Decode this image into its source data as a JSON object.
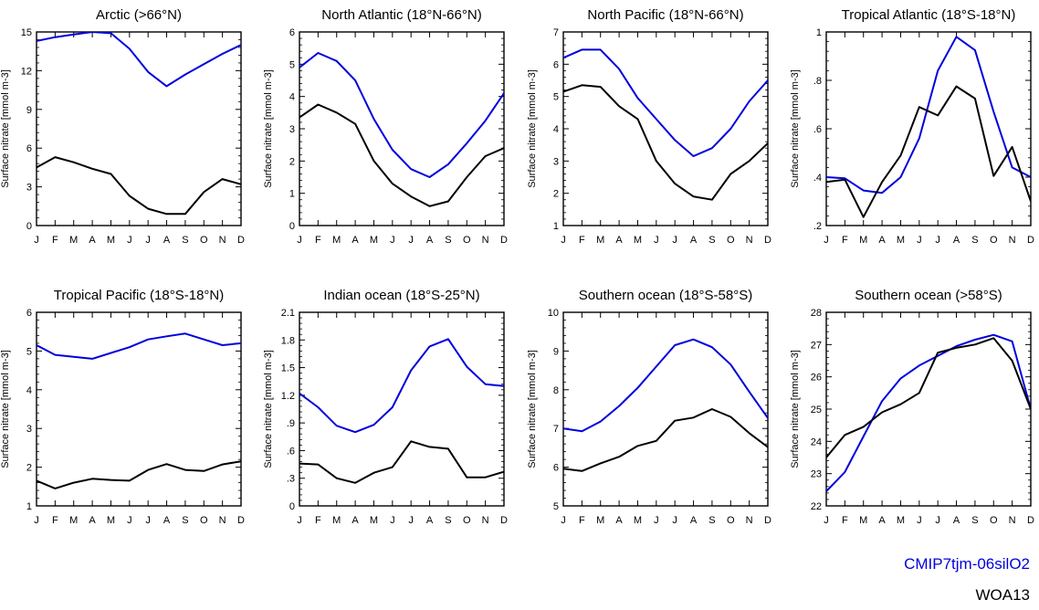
{
  "colors": {
    "model": "#0000dd",
    "obs": "#000000"
  },
  "legend": {
    "model": "CMIP7tjm-06silO2",
    "obs": "WOA13"
  },
  "chart_data": [
    {
      "type": "line",
      "title": "Arctic (>66°N)",
      "ylabel": "Surface nitrate [mmol m-3]",
      "categories": [
        "J",
        "F",
        "M",
        "A",
        "M",
        "J",
        "J",
        "A",
        "S",
        "O",
        "N",
        "D"
      ],
      "ylim": [
        0,
        15
      ],
      "yticks": [
        0,
        3,
        6,
        9,
        12,
        15
      ],
      "yticklabels": [
        "0",
        "3",
        "6",
        "9",
        "12",
        "15"
      ],
      "series": [
        {
          "name": "CMIP7tjm-06silO2",
          "values": [
            14.3,
            14.6,
            14.8,
            15.0,
            14.9,
            13.7,
            11.9,
            10.8,
            11.7,
            12.5,
            13.3,
            14.0
          ]
        },
        {
          "name": "WOA13",
          "values": [
            4.5,
            5.3,
            4.9,
            4.4,
            4.0,
            2.3,
            1.3,
            0.9,
            0.9,
            2.6,
            3.6,
            3.2
          ]
        }
      ]
    },
    {
      "type": "line",
      "title": "North Atlantic (18°N-66°N)",
      "ylabel": "Surface nitrate [mmol m-3]",
      "categories": [
        "J",
        "F",
        "M",
        "A",
        "M",
        "J",
        "J",
        "A",
        "S",
        "O",
        "N",
        "D"
      ],
      "ylim": [
        0,
        6
      ],
      "yticks": [
        0,
        1,
        2,
        3,
        4,
        5,
        6
      ],
      "yticklabels": [
        "0",
        "1",
        "2",
        "3",
        "4",
        "5",
        "6"
      ],
      "series": [
        {
          "name": "CMIP7tjm-06silO2",
          "values": [
            4.9,
            5.35,
            5.1,
            4.5,
            3.3,
            2.35,
            1.75,
            1.5,
            1.9,
            2.55,
            3.25,
            4.1
          ]
        },
        {
          "name": "WOA13",
          "values": [
            3.35,
            3.75,
            3.5,
            3.15,
            2.0,
            1.3,
            0.9,
            0.6,
            0.75,
            1.5,
            2.15,
            2.4
          ]
        }
      ]
    },
    {
      "type": "line",
      "title": "North Pacific (18°N-66°N)",
      "ylabel": "Surface nitrate [mmol m-3]",
      "categories": [
        "J",
        "F",
        "M",
        "A",
        "M",
        "J",
        "J",
        "A",
        "S",
        "O",
        "N",
        "D"
      ],
      "ylim": [
        1,
        7
      ],
      "yticks": [
        1,
        2,
        3,
        4,
        5,
        6,
        7
      ],
      "yticklabels": [
        "1",
        "2",
        "3",
        "4",
        "5",
        "6",
        "7"
      ],
      "series": [
        {
          "name": "CMIP7tjm-06silO2",
          "values": [
            6.2,
            6.45,
            6.45,
            5.85,
            4.95,
            4.3,
            3.65,
            3.15,
            3.4,
            4.0,
            4.85,
            5.5
          ]
        },
        {
          "name": "WOA13",
          "values": [
            5.15,
            5.35,
            5.3,
            4.7,
            4.3,
            3.0,
            2.3,
            1.9,
            1.8,
            2.6,
            3.0,
            3.55
          ]
        }
      ]
    },
    {
      "type": "line",
      "title": "Tropical Atlantic (18°S-18°N)",
      "ylabel": "Surface nitrate [mmol m-3]",
      "categories": [
        "J",
        "F",
        "M",
        "A",
        "M",
        "J",
        "J",
        "A",
        "S",
        "O",
        "N",
        "D"
      ],
      "ylim": [
        0.2,
        1.0
      ],
      "yticks": [
        0.2,
        0.4,
        0.6,
        0.8,
        1.0
      ],
      "yticklabels": [
        ".2",
        ".4",
        ".6",
        ".8",
        "1"
      ],
      "series": [
        {
          "name": "CMIP7tjm-06silO2",
          "values": [
            0.4,
            0.395,
            0.345,
            0.335,
            0.4,
            0.56,
            0.84,
            0.98,
            0.925,
            0.67,
            0.44,
            0.4
          ]
        },
        {
          "name": "WOA13",
          "values": [
            0.38,
            0.39,
            0.235,
            0.38,
            0.49,
            0.69,
            0.655,
            0.775,
            0.725,
            0.405,
            0.525,
            0.3
          ]
        }
      ]
    },
    {
      "type": "line",
      "title": "Tropical Pacific (18°S-18°N)",
      "ylabel": "Surface nitrate [mmol m-3]",
      "categories": [
        "J",
        "F",
        "M",
        "A",
        "M",
        "J",
        "J",
        "A",
        "S",
        "O",
        "N",
        "D"
      ],
      "ylim": [
        1,
        6
      ],
      "yticks": [
        1,
        2,
        3,
        4,
        5,
        6
      ],
      "yticklabels": [
        "1",
        "2",
        "3",
        "4",
        "5",
        "6"
      ],
      "series": [
        {
          "name": "CMIP7tjm-06silO2",
          "values": [
            5.15,
            4.9,
            4.85,
            4.8,
            4.95,
            5.1,
            5.3,
            5.38,
            5.45,
            5.3,
            5.15,
            5.2
          ]
        },
        {
          "name": "WOA13",
          "values": [
            1.65,
            1.45,
            1.6,
            1.7,
            1.67,
            1.65,
            1.93,
            2.08,
            1.93,
            1.9,
            2.07,
            2.15
          ]
        }
      ]
    },
    {
      "type": "line",
      "title": "Indian ocean (18°S-25°N)",
      "ylabel": "Surface nitrate [mmol m-3]",
      "categories": [
        "J",
        "F",
        "M",
        "A",
        "M",
        "J",
        "J",
        "A",
        "S",
        "O",
        "N",
        "D"
      ],
      "ylim": [
        0,
        2.1
      ],
      "yticks": [
        0,
        0.3,
        0.6,
        0.9,
        1.2,
        1.5,
        1.8,
        2.1
      ],
      "yticklabels": [
        "0",
        ".3",
        ".6",
        ".9",
        "1.2",
        "1.5",
        "1.8",
        "2.1"
      ],
      "series": [
        {
          "name": "CMIP7tjm-06silO2",
          "values": [
            1.22,
            1.07,
            0.87,
            0.8,
            0.88,
            1.07,
            1.47,
            1.73,
            1.81,
            1.51,
            1.32,
            1.3
          ]
        },
        {
          "name": "WOA13",
          "values": [
            0.46,
            0.45,
            0.3,
            0.25,
            0.36,
            0.42,
            0.7,
            0.64,
            0.62,
            0.31,
            0.31,
            0.37
          ]
        }
      ]
    },
    {
      "type": "line",
      "title": "Southern ocean (18°S-58°S)",
      "ylabel": "Surface nitrate [mmol m-3]",
      "categories": [
        "J",
        "F",
        "M",
        "A",
        "M",
        "J",
        "J",
        "A",
        "S",
        "O",
        "N",
        "D"
      ],
      "ylim": [
        5,
        10
      ],
      "yticks": [
        5,
        6,
        7,
        8,
        9,
        10
      ],
      "yticklabels": [
        "5",
        "6",
        "7",
        "8",
        "9",
        "10"
      ],
      "series": [
        {
          "name": "CMIP7tjm-06silO2",
          "values": [
            7.0,
            6.93,
            7.18,
            7.58,
            8.05,
            8.6,
            9.15,
            9.3,
            9.1,
            8.65,
            7.95,
            7.27
          ]
        },
        {
          "name": "WOA13",
          "values": [
            5.96,
            5.9,
            6.1,
            6.27,
            6.55,
            6.68,
            7.2,
            7.28,
            7.5,
            7.3,
            6.88,
            6.52
          ]
        }
      ]
    },
    {
      "type": "line",
      "title": "Southern ocean (>58°S)",
      "ylabel": "Surface nitrate [mmol m-3]",
      "categories": [
        "J",
        "F",
        "M",
        "A",
        "M",
        "J",
        "J",
        "A",
        "S",
        "O",
        "N",
        "D"
      ],
      "ylim": [
        22,
        28
      ],
      "yticks": [
        22,
        23,
        24,
        25,
        26,
        27,
        28
      ],
      "yticklabels": [
        "22",
        "23",
        "24",
        "25",
        "26",
        "27",
        "28"
      ],
      "series": [
        {
          "name": "CMIP7tjm-06silO2",
          "values": [
            22.45,
            23.05,
            24.15,
            25.25,
            25.95,
            26.35,
            26.65,
            26.95,
            27.15,
            27.3,
            27.1,
            25.0
          ]
        },
        {
          "name": "WOA13",
          "values": [
            23.5,
            24.2,
            24.45,
            24.9,
            25.15,
            25.5,
            26.75,
            26.9,
            27.0,
            27.2,
            26.5,
            25.0
          ]
        }
      ]
    }
  ]
}
